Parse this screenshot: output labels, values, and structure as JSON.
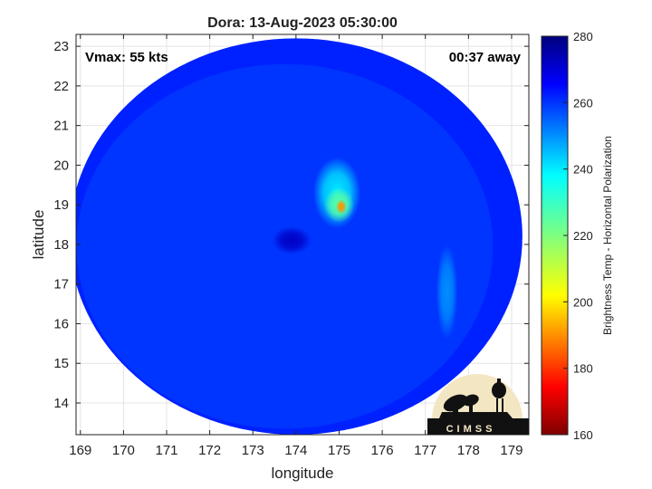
{
  "chart_data": {
    "type": "heatmap",
    "title": "Dora: 13-Aug-2023 05:30:00",
    "xlabel": "longitude",
    "ylabel": "latitude",
    "xlim": [
      168.9,
      179.4
    ],
    "ylim": [
      13.2,
      23.3
    ],
    "xticks": [
      169,
      170,
      171,
      172,
      173,
      174,
      175,
      176,
      177,
      178,
      179
    ],
    "yticks": [
      14,
      15,
      16,
      17,
      18,
      19,
      20,
      21,
      22,
      23
    ],
    "grid": true,
    "annotations": {
      "vmax": "Vmax: 55 kts",
      "time_offset": "00:37 away"
    },
    "colorbar": {
      "label": "Brightness Temp - Horizontal Polarization",
      "min": 160,
      "max": 280,
      "ticks": [
        160,
        180,
        200,
        220,
        240,
        260,
        280
      ]
    },
    "swath": {
      "center_lon": 174.0,
      "center_lat": 18.2,
      "radius_lon": 5.25,
      "radius_lat": 5.0,
      "background_value": 262
    },
    "features": [
      {
        "lon": 175.05,
        "lat": 18.95,
        "value": 190,
        "spread_lon": 0.12,
        "spread_lat": 0.18
      },
      {
        "lon": 175.0,
        "lat": 19.0,
        "value": 225,
        "spread_lon": 0.35,
        "spread_lat": 0.45
      },
      {
        "lon": 174.95,
        "lat": 19.3,
        "value": 240,
        "spread_lon": 0.55,
        "spread_lat": 0.9
      },
      {
        "lon": 173.9,
        "lat": 18.1,
        "value": 272,
        "spread_lon": 0.45,
        "spread_lat": 0.35
      },
      {
        "lon": 177.5,
        "lat": 16.8,
        "value": 250,
        "spread_lon": 0.25,
        "spread_lat": 1.2
      }
    ]
  },
  "logo": {
    "text": "CIMSS"
  }
}
